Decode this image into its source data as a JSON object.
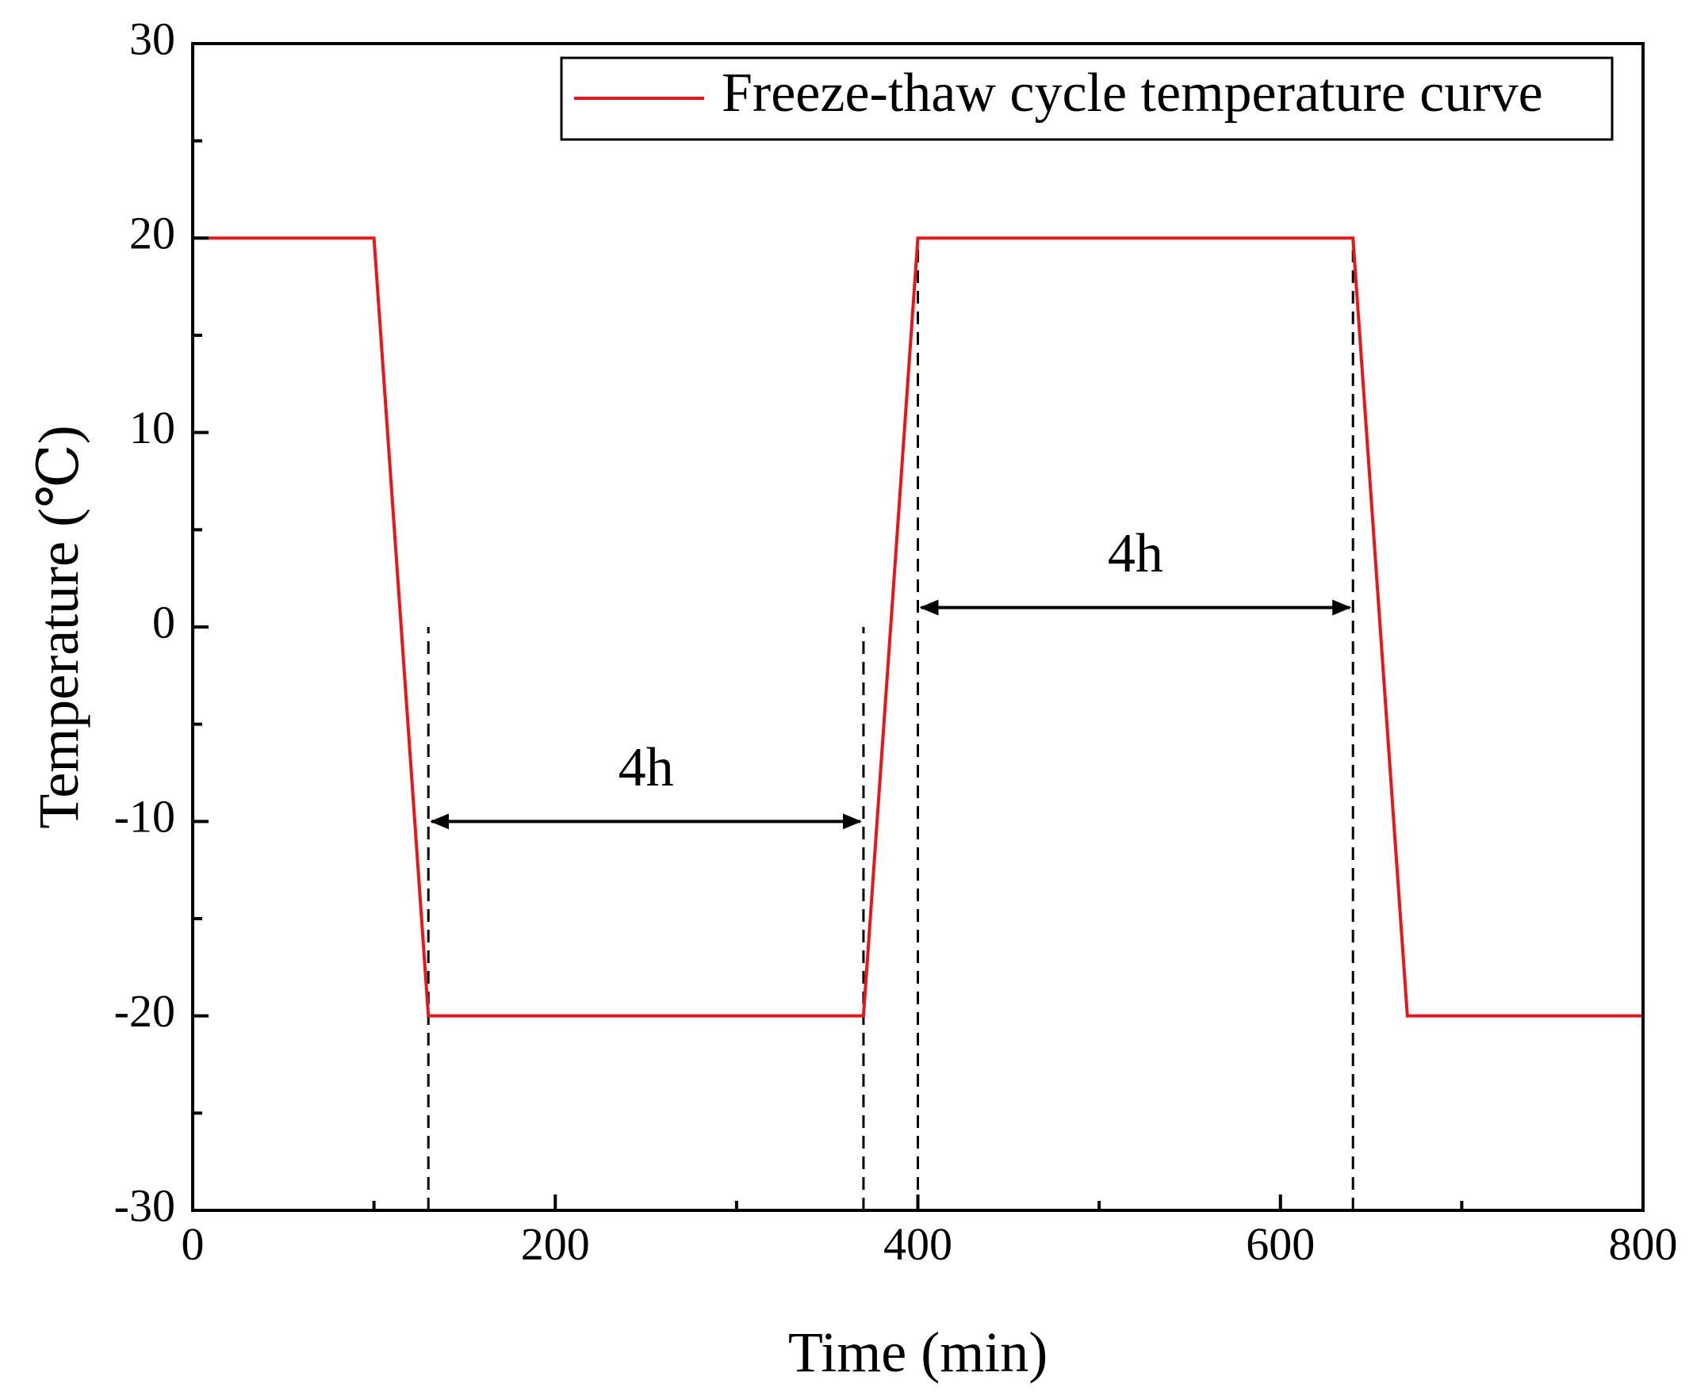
{
  "chart_data": {
    "type": "line",
    "title": "",
    "xlabel": "Time (min)",
    "ylabel": "Temperature (℃)",
    "xlim": [
      0,
      800
    ],
    "ylim": [
      -30,
      30
    ],
    "x_major_ticks": [
      0,
      200,
      400,
      600,
      800
    ],
    "x_tick_labels": [
      "0",
      "200",
      "400",
      "600",
      "800"
    ],
    "x_minor_ticks": [
      100,
      300,
      500,
      700
    ],
    "y_major_ticks": [
      -30,
      -20,
      -10,
      0,
      10,
      20,
      30
    ],
    "y_tick_labels": [
      "-30",
      "-20",
      "-10",
      "0",
      "10",
      "20",
      "30"
    ],
    "y_minor_ticks": [
      -25,
      -15,
      -5,
      5,
      15,
      25
    ],
    "grid": false,
    "legend_position": "top-right",
    "series": [
      {
        "name": "Freeze-thaw cycle temperature curve",
        "color": "#e8161b",
        "x": [
          0,
          100,
          130,
          370,
          400,
          640,
          670,
          800
        ],
        "y": [
          20,
          20,
          -20,
          -20,
          20,
          20,
          -20,
          -20
        ]
      }
    ],
    "annotations": {
      "dashed_lines": [
        {
          "x": 130,
          "y_from": -30,
          "y_to": 0
        },
        {
          "x": 370,
          "y_from": -30,
          "y_to": 0
        },
        {
          "x": 400,
          "y_from": -30,
          "y_to": 20
        },
        {
          "x": 640,
          "y_from": -30,
          "y_to": 20
        }
      ],
      "arrows": [
        {
          "x_from": 130,
          "x_to": 370,
          "y": -10,
          "label": "4h",
          "label_y": -7.5
        },
        {
          "x_from": 400,
          "x_to": 640,
          "y": 1,
          "label": "4h",
          "label_y": 3.5
        }
      ]
    }
  }
}
